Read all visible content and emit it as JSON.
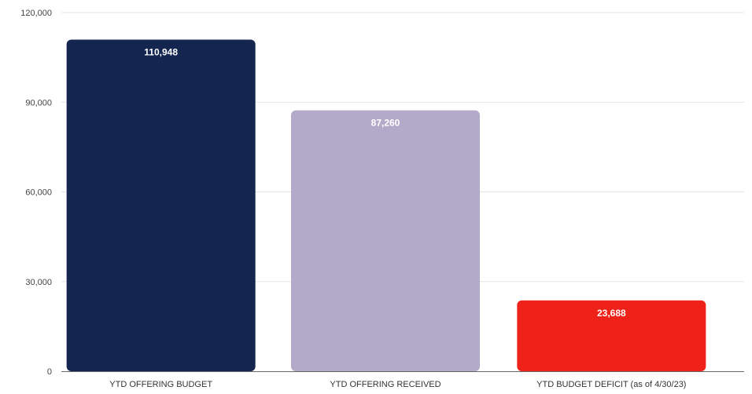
{
  "chart_data": {
    "type": "bar",
    "categories": [
      "YTD OFFERING BUDGET",
      "YTD OFFERING RECEIVED",
      "YTD BUDGET DEFICIT (as of 4/30/23)"
    ],
    "values": [
      110948,
      87260,
      23688
    ],
    "data_labels": [
      "110,948",
      "87,260",
      "23,688"
    ],
    "colors": [
      "#14264f",
      "#b3a9c8",
      "#ee2219"
    ],
    "ylim": [
      0,
      120000
    ],
    "yticks": [
      0,
      30000,
      60000,
      90000,
      120000
    ],
    "ytick_labels": [
      "0",
      "30,000",
      "60,000",
      "90,000",
      "120,000"
    ],
    "grid": true,
    "gridline_color": "#e3e3e3",
    "axis_color": "#666666",
    "legend": "none"
  }
}
